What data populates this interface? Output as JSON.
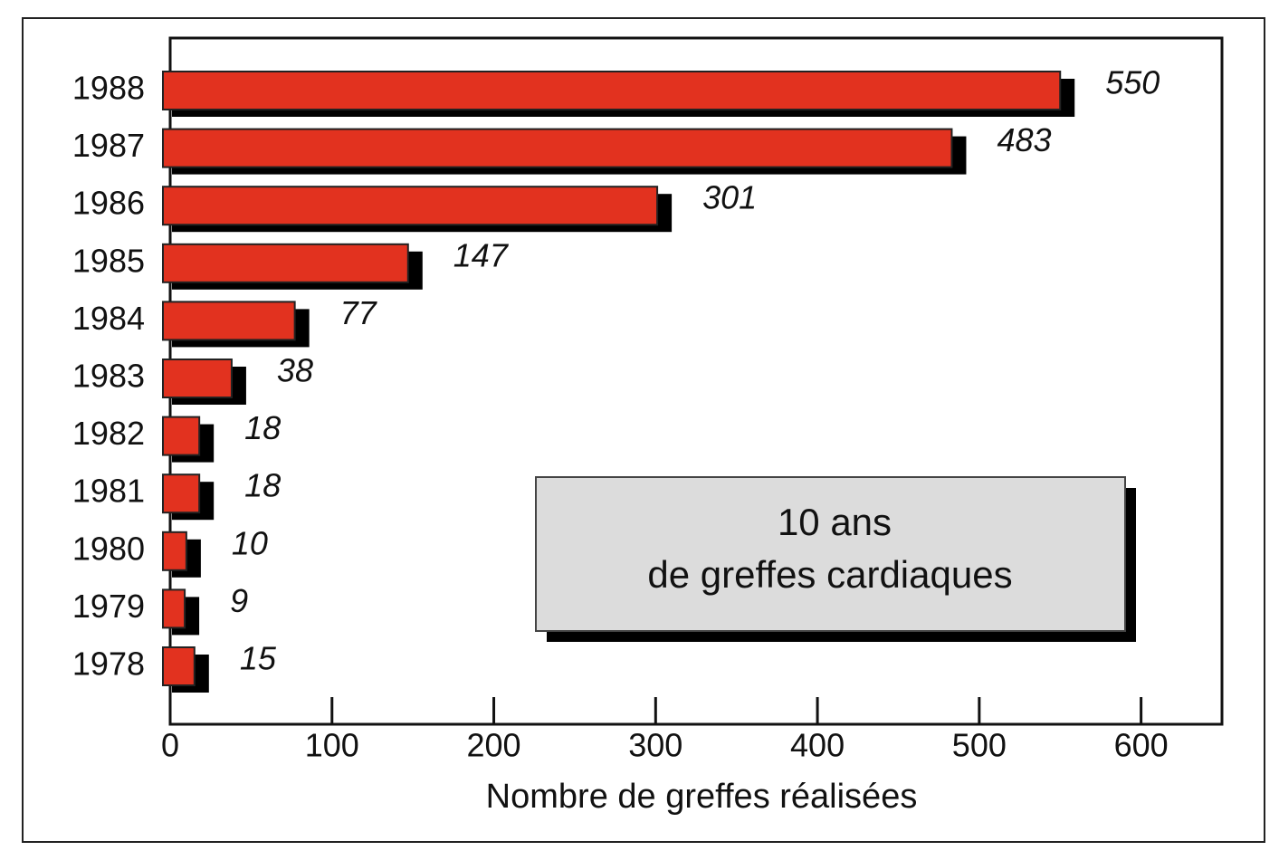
{
  "chart_data": {
    "type": "bar",
    "orientation": "horizontal",
    "categories": [
      "1988",
      "1987",
      "1986",
      "1985",
      "1984",
      "1983",
      "1982",
      "1981",
      "1980",
      "1979",
      "1978"
    ],
    "values": [
      550,
      483,
      301,
      147,
      77,
      38,
      18,
      18,
      10,
      9,
      15
    ],
    "color": "#e2321f",
    "shadow_color": "#000000",
    "xlim": [
      0,
      650
    ],
    "xticks": [
      0,
      100,
      200,
      300,
      400,
      500,
      600
    ],
    "xlabel": "Nombre de greffes réalisées",
    "annotation": [
      "10 ans",
      "de greffes cardiaques"
    ]
  }
}
